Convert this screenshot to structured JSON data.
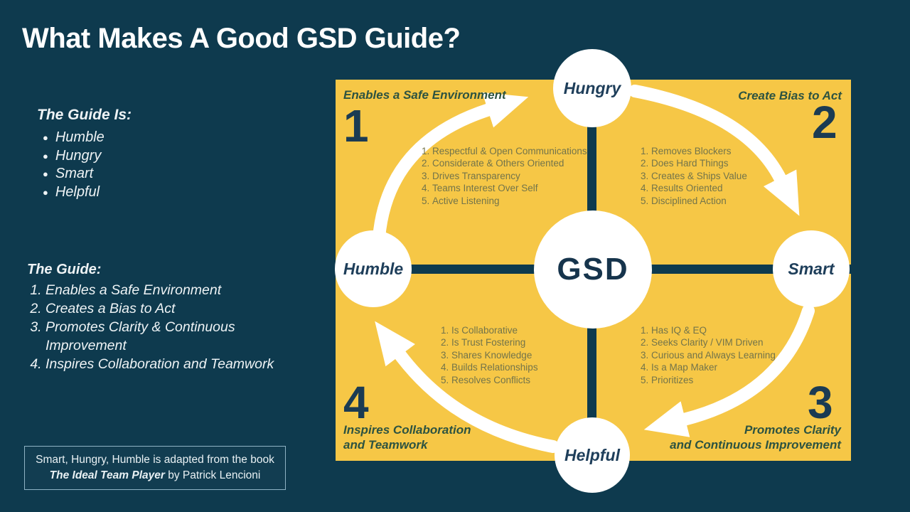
{
  "slide": {
    "title": "What Makes A Good GSD Guide?",
    "colors": {
      "background": "#0e3a4e",
      "accent_yellow": "#f6c746",
      "navy": "#1b3b53",
      "white": "#ffffff",
      "corner_label_green": "#2d5341",
      "quadrant_list_olive": "#73744a",
      "attribution_border": "#8fb3c4"
    }
  },
  "left_panel": {
    "guide_is": {
      "heading": "The Guide Is:",
      "items": [
        "Humble",
        "Hungry",
        "Smart",
        "Helpful"
      ]
    },
    "guide_numbered": {
      "heading": "The Guide:",
      "items": [
        "Enables a Safe Environment",
        "Creates a Bias to Act",
        "Promotes Clarity & Continuous Improvement",
        "Inspires Collaboration and Teamwork"
      ]
    },
    "attribution": {
      "line1": "Smart, Hungry, Humble is adapted from the book",
      "book_title": "The Ideal Team Player",
      "byline": " by Patrick Lencioni"
    }
  },
  "diagram": {
    "center_label": "GSD",
    "nodes": {
      "top": "Hungry",
      "right": "Smart",
      "bottom": "Helpful",
      "left": "Humble"
    },
    "corners": {
      "top_left": {
        "number": "1",
        "label": "Enables a  Safe Environment"
      },
      "top_right": {
        "number": "2",
        "label": "Create Bias to Act"
      },
      "bottom_right": {
        "number": "3",
        "label_line1": "Promotes Clarity",
        "label_line2": "and Continuous Improvement"
      },
      "bottom_left": {
        "number": "4",
        "label_line1": "Inspires Collaboration",
        "label_line2": "and Teamwork"
      }
    },
    "quadrant_lists": {
      "top_left": [
        "Respectful & Open Communications",
        "Considerate & Others Oriented",
        "Drives Transparency",
        "Teams Interest Over Self",
        "Active Listening"
      ],
      "top_right": [
        "Removes Blockers",
        "Does Hard Things",
        "Creates & Ships Value",
        "Results Oriented",
        "Disciplined Action"
      ],
      "bottom_left": [
        "Is Collaborative",
        "Is Trust Fostering",
        "Shares Knowledge",
        "Builds Relationships",
        "Resolves Conflicts"
      ],
      "bottom_right": [
        "Has IQ & EQ",
        "Seeks Clarity / VIM Driven",
        "Curious and Always Learning",
        "Is a Map Maker",
        "Prioritizes"
      ]
    }
  }
}
